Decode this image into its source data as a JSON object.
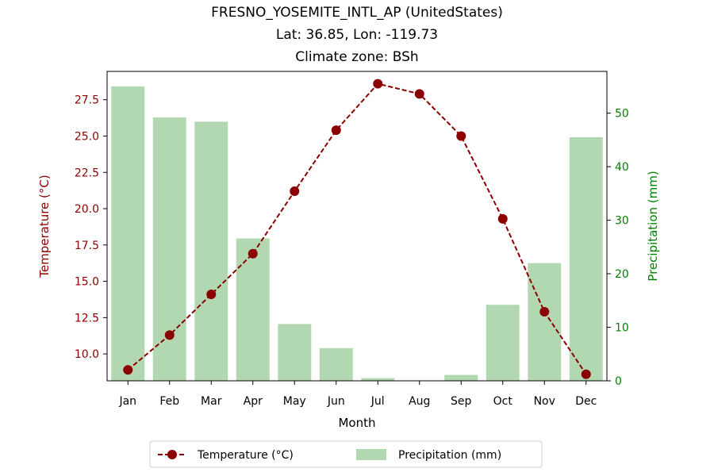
{
  "chart_data": {
    "type": "bar+line",
    "title_lines": [
      "FRESNO_YOSEMITE_INTL_AP (UnitedStates)",
      "Lat: 36.85, Lon: -119.73",
      "Climate zone: BSh"
    ],
    "xlabel": "Month",
    "ylabel_left": "Temperature (°C)",
    "ylabel_right": "Precipitation (mm)",
    "categories": [
      "Jan",
      "Feb",
      "Mar",
      "Apr",
      "May",
      "Jun",
      "Jul",
      "Aug",
      "Sep",
      "Oct",
      "Nov",
      "Dec"
    ],
    "temperature": {
      "name": "Temperature (°C)",
      "values": [
        8.9,
        11.3,
        14.1,
        16.9,
        21.2,
        25.4,
        28.6,
        27.9,
        25.0,
        19.3,
        12.9,
        8.6
      ],
      "color": "#8b0000",
      "ylim": [
        8.15,
        29.45
      ],
      "ticks": [
        "10.0",
        "12.5",
        "15.0",
        "17.5",
        "20.0",
        "22.5",
        "25.0",
        "27.5"
      ]
    },
    "precipitation": {
      "name": "Precipitation (mm)",
      "values": [
        55.0,
        49.2,
        48.4,
        26.6,
        10.6,
        6.1,
        0.5,
        0.0,
        1.1,
        14.2,
        22.0,
        45.5
      ],
      "color": "#b2d8b2",
      "ylim": [
        0,
        57.8
      ],
      "ticks": [
        "0",
        "10",
        "20",
        "30",
        "40",
        "50"
      ]
    },
    "left_axis_color": "#8b0000",
    "right_axis_color": "#008000",
    "legend_position": "bottom-center"
  }
}
